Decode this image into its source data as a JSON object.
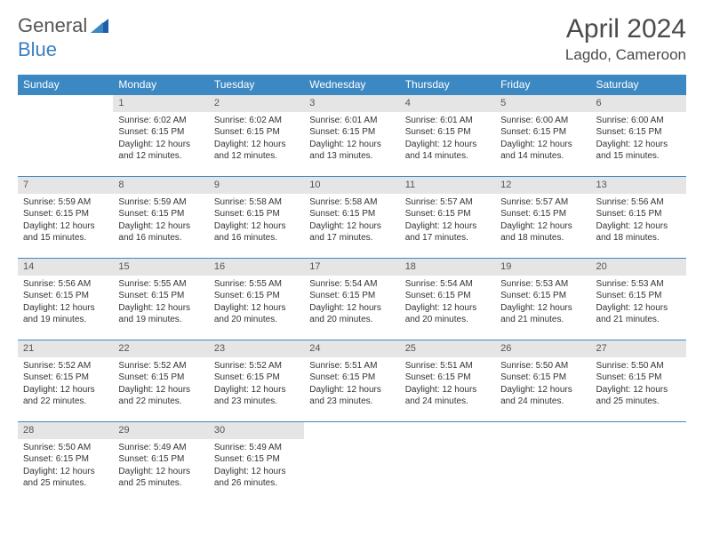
{
  "brand": {
    "word1": "General",
    "word2": "Blue"
  },
  "title": {
    "month_year": "April 2024",
    "location": "Lagdo, Cameroon"
  },
  "colors": {
    "header_bg": "#3b88c3",
    "header_text": "#ffffff",
    "daynum_bg": "#e5e5e5",
    "border": "#3b88c3",
    "body_text": "#333333",
    "brand_gray": "#555555",
    "brand_blue": "#3b7fc4"
  },
  "weekdays": [
    "Sunday",
    "Monday",
    "Tuesday",
    "Wednesday",
    "Thursday",
    "Friday",
    "Saturday"
  ],
  "weeks": [
    [
      null,
      {
        "n": "1",
        "sr": "Sunrise: 6:02 AM",
        "ss": "Sunset: 6:15 PM",
        "d1": "Daylight: 12 hours",
        "d2": "and 12 minutes."
      },
      {
        "n": "2",
        "sr": "Sunrise: 6:02 AM",
        "ss": "Sunset: 6:15 PM",
        "d1": "Daylight: 12 hours",
        "d2": "and 12 minutes."
      },
      {
        "n": "3",
        "sr": "Sunrise: 6:01 AM",
        "ss": "Sunset: 6:15 PM",
        "d1": "Daylight: 12 hours",
        "d2": "and 13 minutes."
      },
      {
        "n": "4",
        "sr": "Sunrise: 6:01 AM",
        "ss": "Sunset: 6:15 PM",
        "d1": "Daylight: 12 hours",
        "d2": "and 14 minutes."
      },
      {
        "n": "5",
        "sr": "Sunrise: 6:00 AM",
        "ss": "Sunset: 6:15 PM",
        "d1": "Daylight: 12 hours",
        "d2": "and 14 minutes."
      },
      {
        "n": "6",
        "sr": "Sunrise: 6:00 AM",
        "ss": "Sunset: 6:15 PM",
        "d1": "Daylight: 12 hours",
        "d2": "and 15 minutes."
      }
    ],
    [
      {
        "n": "7",
        "sr": "Sunrise: 5:59 AM",
        "ss": "Sunset: 6:15 PM",
        "d1": "Daylight: 12 hours",
        "d2": "and 15 minutes."
      },
      {
        "n": "8",
        "sr": "Sunrise: 5:59 AM",
        "ss": "Sunset: 6:15 PM",
        "d1": "Daylight: 12 hours",
        "d2": "and 16 minutes."
      },
      {
        "n": "9",
        "sr": "Sunrise: 5:58 AM",
        "ss": "Sunset: 6:15 PM",
        "d1": "Daylight: 12 hours",
        "d2": "and 16 minutes."
      },
      {
        "n": "10",
        "sr": "Sunrise: 5:58 AM",
        "ss": "Sunset: 6:15 PM",
        "d1": "Daylight: 12 hours",
        "d2": "and 17 minutes."
      },
      {
        "n": "11",
        "sr": "Sunrise: 5:57 AM",
        "ss": "Sunset: 6:15 PM",
        "d1": "Daylight: 12 hours",
        "d2": "and 17 minutes."
      },
      {
        "n": "12",
        "sr": "Sunrise: 5:57 AM",
        "ss": "Sunset: 6:15 PM",
        "d1": "Daylight: 12 hours",
        "d2": "and 18 minutes."
      },
      {
        "n": "13",
        "sr": "Sunrise: 5:56 AM",
        "ss": "Sunset: 6:15 PM",
        "d1": "Daylight: 12 hours",
        "d2": "and 18 minutes."
      }
    ],
    [
      {
        "n": "14",
        "sr": "Sunrise: 5:56 AM",
        "ss": "Sunset: 6:15 PM",
        "d1": "Daylight: 12 hours",
        "d2": "and 19 minutes."
      },
      {
        "n": "15",
        "sr": "Sunrise: 5:55 AM",
        "ss": "Sunset: 6:15 PM",
        "d1": "Daylight: 12 hours",
        "d2": "and 19 minutes."
      },
      {
        "n": "16",
        "sr": "Sunrise: 5:55 AM",
        "ss": "Sunset: 6:15 PM",
        "d1": "Daylight: 12 hours",
        "d2": "and 20 minutes."
      },
      {
        "n": "17",
        "sr": "Sunrise: 5:54 AM",
        "ss": "Sunset: 6:15 PM",
        "d1": "Daylight: 12 hours",
        "d2": "and 20 minutes."
      },
      {
        "n": "18",
        "sr": "Sunrise: 5:54 AM",
        "ss": "Sunset: 6:15 PM",
        "d1": "Daylight: 12 hours",
        "d2": "and 20 minutes."
      },
      {
        "n": "19",
        "sr": "Sunrise: 5:53 AM",
        "ss": "Sunset: 6:15 PM",
        "d1": "Daylight: 12 hours",
        "d2": "and 21 minutes."
      },
      {
        "n": "20",
        "sr": "Sunrise: 5:53 AM",
        "ss": "Sunset: 6:15 PM",
        "d1": "Daylight: 12 hours",
        "d2": "and 21 minutes."
      }
    ],
    [
      {
        "n": "21",
        "sr": "Sunrise: 5:52 AM",
        "ss": "Sunset: 6:15 PM",
        "d1": "Daylight: 12 hours",
        "d2": "and 22 minutes."
      },
      {
        "n": "22",
        "sr": "Sunrise: 5:52 AM",
        "ss": "Sunset: 6:15 PM",
        "d1": "Daylight: 12 hours",
        "d2": "and 22 minutes."
      },
      {
        "n": "23",
        "sr": "Sunrise: 5:52 AM",
        "ss": "Sunset: 6:15 PM",
        "d1": "Daylight: 12 hours",
        "d2": "and 23 minutes."
      },
      {
        "n": "24",
        "sr": "Sunrise: 5:51 AM",
        "ss": "Sunset: 6:15 PM",
        "d1": "Daylight: 12 hours",
        "d2": "and 23 minutes."
      },
      {
        "n": "25",
        "sr": "Sunrise: 5:51 AM",
        "ss": "Sunset: 6:15 PM",
        "d1": "Daylight: 12 hours",
        "d2": "and 24 minutes."
      },
      {
        "n": "26",
        "sr": "Sunrise: 5:50 AM",
        "ss": "Sunset: 6:15 PM",
        "d1": "Daylight: 12 hours",
        "d2": "and 24 minutes."
      },
      {
        "n": "27",
        "sr": "Sunrise: 5:50 AM",
        "ss": "Sunset: 6:15 PM",
        "d1": "Daylight: 12 hours",
        "d2": "and 25 minutes."
      }
    ],
    [
      {
        "n": "28",
        "sr": "Sunrise: 5:50 AM",
        "ss": "Sunset: 6:15 PM",
        "d1": "Daylight: 12 hours",
        "d2": "and 25 minutes."
      },
      {
        "n": "29",
        "sr": "Sunrise: 5:49 AM",
        "ss": "Sunset: 6:15 PM",
        "d1": "Daylight: 12 hours",
        "d2": "and 25 minutes."
      },
      {
        "n": "30",
        "sr": "Sunrise: 5:49 AM",
        "ss": "Sunset: 6:15 PM",
        "d1": "Daylight: 12 hours",
        "d2": "and 26 minutes."
      },
      null,
      null,
      null,
      null
    ]
  ]
}
